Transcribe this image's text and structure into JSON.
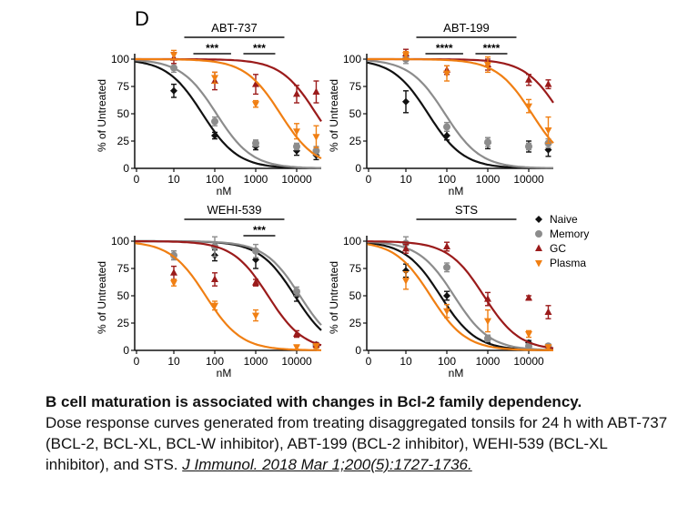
{
  "panel_label": "D",
  "caption": {
    "title": "B cell maturation is associated with changes in Bcl-2 family dependency.",
    "body": "Dose response curves generated from treating disaggregated tonsils for 24 h with ABT-737 (BCL-2, BCL-XL, BCL-W inhibitor), ABT-199 (BCL-2 inhibitor), WEHI-539 (BCL-XL inhibitor), and STS. ",
    "citation": "J Immunol. 2018 Mar 1;200(5):1727-1736."
  },
  "colors": {
    "Naive": "#111111",
    "Memory": "#8c8c8c",
    "GC": "#9b1b1b",
    "Plasma": "#f07f13"
  },
  "legend": [
    "Naive",
    "Memory",
    "GC",
    "Plasma"
  ],
  "chart_data": [
    {
      "type": "scatter",
      "title": "ABT-737",
      "xlabel": "nM",
      "ylabel": "% of Untreated",
      "x_scale": "log",
      "x_ticks": [
        "0",
        "10",
        "100",
        "1000",
        "10000"
      ],
      "y_ticks": [
        "0",
        "25",
        "50",
        "75",
        "100"
      ],
      "ylim": [
        0,
        100
      ],
      "significance": [
        {
          "label": "***",
          "from": 30,
          "to": 250
        },
        {
          "label": "***",
          "from": 500,
          "to": 3000
        }
      ],
      "series": [
        {
          "name": "Naive",
          "ec50": 50,
          "points": [
            [
              0,
              100,
              0
            ],
            [
              10,
              71,
              6
            ],
            [
              100,
              30,
              3
            ],
            [
              1000,
              20,
              3
            ],
            [
              10000,
              16,
              4
            ],
            [
              30000,
              12,
              4
            ]
          ]
        },
        {
          "name": "Memory",
          "ec50": 110,
          "points": [
            [
              0,
              100,
              0
            ],
            [
              10,
              92,
              4
            ],
            [
              100,
              43,
              4
            ],
            [
              1000,
              23,
              3
            ],
            [
              10000,
              20,
              3
            ],
            [
              30000,
              16,
              4
            ]
          ]
        },
        {
          "name": "GC",
          "ec50": 30000,
          "points": [
            [
              0,
              100,
              0
            ],
            [
              10,
              101,
              5
            ],
            [
              100,
              80,
              8
            ],
            [
              1000,
              77,
              9
            ],
            [
              10000,
              68,
              8
            ],
            [
              30000,
              70,
              10
            ]
          ]
        },
        {
          "name": "Plasma",
          "ec50": 4000,
          "points": [
            [
              0,
              100,
              0
            ],
            [
              10,
              104,
              4
            ],
            [
              100,
              83,
              5
            ],
            [
              1000,
              59,
              3
            ],
            [
              10000,
              34,
              7
            ],
            [
              30000,
              29,
              10
            ]
          ]
        }
      ]
    },
    {
      "type": "scatter",
      "title": "ABT-199",
      "xlabel": "nM",
      "ylabel": "% of Untreated",
      "x_scale": "log",
      "x_ticks": [
        "0",
        "10",
        "100",
        "1000",
        "10000"
      ],
      "y_ticks": [
        "0",
        "25",
        "50",
        "75",
        "100"
      ],
      "ylim": [
        0,
        100
      ],
      "significance": [
        {
          "label": "****",
          "from": 30,
          "to": 250
        },
        {
          "label": "****",
          "from": 500,
          "to": 3000
        }
      ],
      "series": [
        {
          "name": "Naive",
          "ec50": 35,
          "points": [
            [
              0,
              100,
              0
            ],
            [
              10,
              61,
              10
            ],
            [
              100,
              30,
              4
            ],
            [
              1000,
              23,
              5
            ],
            [
              10000,
              20,
              5
            ],
            [
              30000,
              17,
              6
            ]
          ]
        },
        {
          "name": "Memory",
          "ec50": 90,
          "points": [
            [
              0,
              100,
              0
            ],
            [
              10,
              100,
              4
            ],
            [
              100,
              38,
              4
            ],
            [
              1000,
              24,
              4
            ],
            [
              10000,
              20,
              3
            ],
            [
              30000,
              23,
              4
            ]
          ]
        },
        {
          "name": "GC",
          "ec50": 60000,
          "points": [
            [
              0,
              100,
              0
            ],
            [
              10,
              105,
              4
            ],
            [
              100,
              90,
              4
            ],
            [
              1000,
              95,
              5
            ],
            [
              10000,
              81,
              5
            ],
            [
              30000,
              77,
              4
            ]
          ]
        },
        {
          "name": "Plasma",
          "ec50": 12000,
          "points": [
            [
              0,
              100,
              0
            ],
            [
              10,
              104,
              3
            ],
            [
              100,
              87,
              7
            ],
            [
              1000,
              95,
              7
            ],
            [
              10000,
              57,
              6
            ],
            [
              30000,
              35,
              12
            ]
          ]
        }
      ]
    },
    {
      "type": "scatter",
      "title": "WEHI-539",
      "xlabel": "nM",
      "ylabel": "% of Untreated",
      "x_scale": "log",
      "x_ticks": [
        "0",
        "10",
        "100",
        "1000",
        "10000"
      ],
      "y_ticks": [
        "0",
        "25",
        "50",
        "75",
        "100"
      ],
      "ylim": [
        0,
        100
      ],
      "significance": [
        {
          "label": "***",
          "from": 500,
          "to": 3000
        }
      ],
      "series": [
        {
          "name": "Naive",
          "ec50": 9000,
          "points": [
            [
              0,
              100,
              0
            ],
            [
              10,
              87,
              4
            ],
            [
              100,
              87,
              5
            ],
            [
              1000,
              83,
              8
            ],
            [
              10000,
              50,
              5
            ],
            [
              30000,
              4,
              2
            ]
          ]
        },
        {
          "name": "Memory",
          "ec50": 12000,
          "points": [
            [
              0,
              100,
              0
            ],
            [
              10,
              87,
              4
            ],
            [
              100,
              95,
              9
            ],
            [
              1000,
              91,
              6
            ],
            [
              10000,
              54,
              4
            ],
            [
              30000,
              5,
              2
            ]
          ]
        },
        {
          "name": "GC",
          "ec50": 2000,
          "points": [
            [
              0,
              100,
              0
            ],
            [
              10,
              71,
              6
            ],
            [
              100,
              65,
              6
            ],
            [
              1000,
              62,
              3
            ],
            [
              10000,
              15,
              3
            ],
            [
              30000,
              5,
              2
            ]
          ]
        },
        {
          "name": "Plasma",
          "ec50": 60,
          "points": [
            [
              0,
              100,
              0
            ],
            [
              10,
              62,
              3
            ],
            [
              100,
              41,
              4
            ],
            [
              1000,
              32,
              5
            ],
            [
              10000,
              3,
              2
            ],
            [
              30000,
              4,
              2
            ]
          ]
        }
      ]
    },
    {
      "type": "scatter",
      "title": "STS",
      "xlabel": "nM",
      "ylabel": "% of Untreated",
      "x_scale": "log",
      "x_ticks": [
        "0",
        "10",
        "100",
        "1000",
        "10000"
      ],
      "y_ticks": [
        "0",
        "25",
        "50",
        "75",
        "100"
      ],
      "ylim": [
        0,
        100
      ],
      "significance": [
        {
          "label": "",
          "from": 40,
          "to": 1500
        }
      ],
      "series": [
        {
          "name": "Naive",
          "ec50": 70,
          "points": [
            [
              0,
              100,
              0
            ],
            [
              10,
              73,
              6
            ],
            [
              100,
              50,
              4
            ],
            [
              1000,
              10,
              3
            ],
            [
              10000,
              7,
              2
            ],
            [
              30000,
              3,
              2
            ]
          ]
        },
        {
          "name": "Memory",
          "ec50": 150,
          "points": [
            [
              0,
              100,
              0
            ],
            [
              10,
              98,
              6
            ],
            [
              100,
              76,
              4
            ],
            [
              1000,
              11,
              3
            ],
            [
              10000,
              4,
              2
            ],
            [
              30000,
              4,
              2
            ]
          ]
        },
        {
          "name": "GC",
          "ec50": 800,
          "points": [
            [
              0,
              100,
              0
            ],
            [
              10,
              93,
              4
            ],
            [
              100,
              95,
              4
            ],
            [
              1000,
              47,
              6
            ],
            [
              10000,
              48,
              2
            ],
            [
              30000,
              35,
              6
            ]
          ]
        },
        {
          "name": "Plasma",
          "ec50": 40,
          "points": [
            [
              0,
              100,
              0
            ],
            [
              10,
              64,
              8
            ],
            [
              100,
              36,
              6
            ],
            [
              1000,
              27,
              10
            ],
            [
              10000,
              15,
              3
            ],
            [
              30000,
              3,
              2
            ]
          ]
        }
      ]
    }
  ]
}
